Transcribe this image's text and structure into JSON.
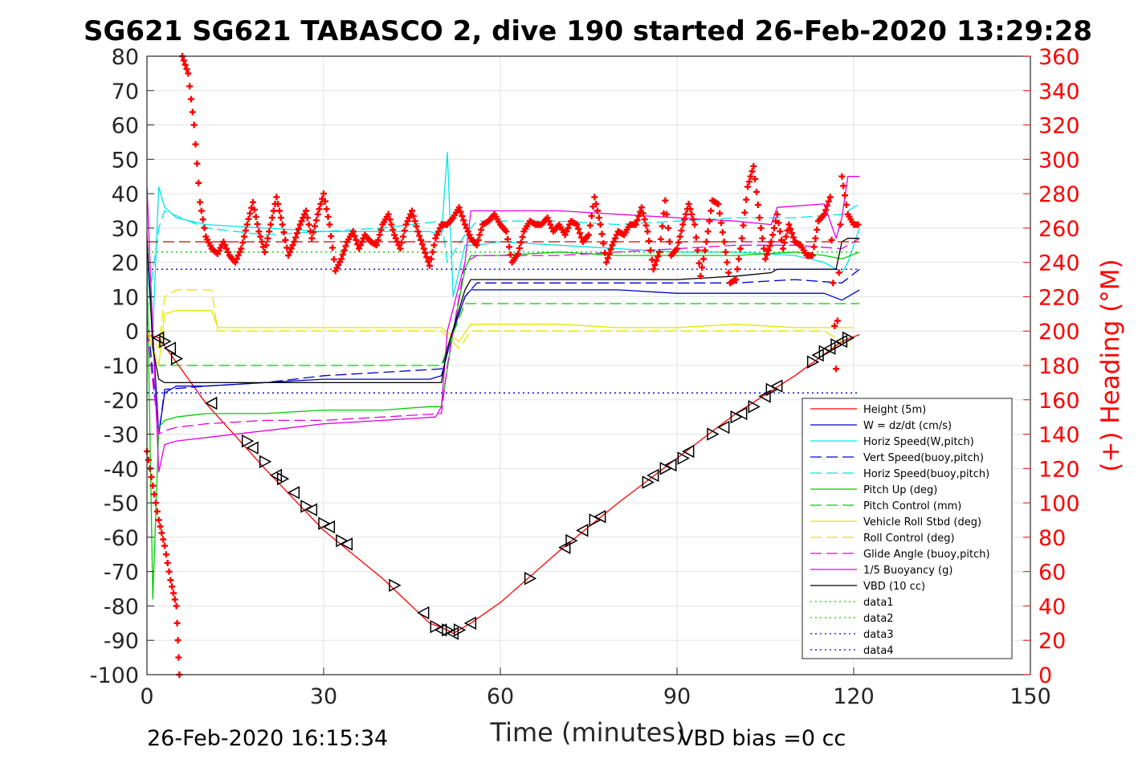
{
  "chart_data": {
    "type": "line",
    "title": "SG621 SG621 TABASCO 2, dive 190 started 26-Feb-2020 13:29:28",
    "xlabel": "Time (minutes)",
    "ylabel_right": "(+) Heading (°M)",
    "footer_left": "26-Feb-2020 16:15:34",
    "footer_right": "VBD bias =0 cc",
    "xlim": [
      0,
      150
    ],
    "ylim_left": [
      -100,
      80
    ],
    "ylim_right": [
      0,
      360
    ],
    "grid": true,
    "legend_position": "lower-right",
    "x_ticks": [
      "0",
      "30",
      "60",
      "90",
      "120",
      "150"
    ],
    "y_ticks_left": [
      "80",
      "70",
      "60",
      "50",
      "40",
      "30",
      "20",
      "10",
      "0",
      "-10",
      "-20",
      "-30",
      "-40",
      "-50",
      "-60",
      "-70",
      "-80",
      "-90",
      "-100"
    ],
    "y_ticks_right": [
      "360",
      "340",
      "320",
      "300",
      "280",
      "260",
      "240",
      "220",
      "200",
      "180",
      "160",
      "140",
      "120",
      "100",
      "80",
      "60",
      "40",
      "20",
      "0"
    ],
    "legend": [
      {
        "label": "Height (5m)",
        "color": "#ff0000",
        "dash": "solid"
      },
      {
        "label": "W = dz/dt (cm/s)",
        "color": "#0000cc",
        "dash": "solid"
      },
      {
        "label": "Horiz Speed(W,pitch)",
        "color": "#00e5e5",
        "dash": "solid"
      },
      {
        "label": "Vert Speed(buoy,pitch)",
        "color": "#0000cc",
        "dash": "dashed"
      },
      {
        "label": "Horiz Speed(buoy,pitch)",
        "color": "#00e5e5",
        "dash": "dashed"
      },
      {
        "label": "Pitch Up (deg)",
        "color": "#00cc00",
        "dash": "solid"
      },
      {
        "label": "Pitch Control (mm)",
        "color": "#00cc00",
        "dash": "dashed"
      },
      {
        "label": "Vehicle Roll Stbd (deg)",
        "color": "#e5e500",
        "dash": "solid"
      },
      {
        "label": "Roll Control (deg)",
        "color": "#e5e500",
        "dash": "dashed"
      },
      {
        "label": "Glide Angle (buoy,pitch)",
        "color": "#e500e5",
        "dash": "dashed"
      },
      {
        "label": "1/5 Buoyancy (g)",
        "color": "#e500e5",
        "dash": "solid"
      },
      {
        "label": "VBD (10 cc)",
        "color": "#000000",
        "dash": "solid"
      },
      {
        "label": "data1",
        "color": "#00cc00",
        "dash": "dotted"
      },
      {
        "label": "data2",
        "color": "#00cc00",
        "dash": "dotted"
      },
      {
        "label": "data3",
        "color": "#0000cc",
        "dash": "dotted"
      },
      {
        "label": "data4",
        "color": "#0000cc",
        "dash": "dotted"
      }
    ],
    "series": [
      {
        "name": "Height (5m)",
        "color": "#ff0000",
        "dash": "solid",
        "axis": "left",
        "x": [
          0,
          2,
          10,
          20,
          30,
          40,
          48,
          51,
          52,
          55,
          60,
          70,
          80,
          90,
          100,
          110,
          118,
          121
        ],
        "y": [
          -1,
          -2,
          -21,
          -40,
          -58,
          -72,
          -85,
          -87,
          -88,
          -85,
          -79,
          -64,
          -50,
          -37,
          -24,
          -13,
          -3,
          -1
        ]
      },
      {
        "name": "W = dz/dt (cm/s)",
        "color": "#0000cc",
        "dash": "solid",
        "axis": "left",
        "x": [
          0,
          1,
          2,
          3,
          5,
          10,
          20,
          30,
          40,
          48,
          50,
          52,
          54,
          55,
          60,
          70,
          80,
          90,
          100,
          110,
          115,
          118,
          119,
          121
        ],
        "y": [
          25,
          0,
          -30,
          -18,
          -16,
          -16,
          -15,
          -14,
          -14,
          -14,
          -13,
          0,
          10,
          12,
          12,
          12,
          12,
          11,
          11,
          11,
          11,
          9,
          10,
          12
        ]
      },
      {
        "name": "Horiz Speed(W,pitch)",
        "color": "#00e5e5",
        "dash": "solid",
        "axis": "left",
        "x": [
          0,
          1,
          2,
          3,
          5,
          10,
          20,
          30,
          40,
          48,
          50,
          51,
          52,
          54,
          56,
          60,
          70,
          80,
          90,
          100,
          110,
          115,
          118,
          119,
          121
        ],
        "y": [
          20,
          0,
          42,
          36,
          33,
          31,
          30,
          29,
          29,
          29,
          28,
          52,
          10,
          25,
          25,
          26,
          25,
          24,
          23,
          23,
          22,
          20,
          17,
          20,
          30
        ]
      },
      {
        "name": "Vert Speed(buoy,pitch)",
        "color": "#0000cc",
        "dash": "dashed",
        "axis": "left",
        "x": [
          0,
          2,
          3,
          10,
          20,
          30,
          40,
          50,
          51,
          54,
          56,
          70,
          80,
          90,
          100,
          110,
          118,
          121
        ],
        "y": [
          5,
          -30,
          -17,
          -16,
          -15,
          -13,
          -12,
          -11,
          -5,
          10,
          14,
          14,
          14,
          14,
          14,
          15,
          14,
          18
        ]
      },
      {
        "name": "Horiz Speed(buoy,pitch)",
        "color": "#00e5e5",
        "dash": "dashed",
        "axis": "left",
        "x": [
          0,
          2,
          3,
          10,
          20,
          30,
          40,
          50,
          51,
          54,
          56,
          70,
          80,
          90,
          100,
          110,
          118,
          121
        ],
        "y": [
          5,
          30,
          35,
          30,
          28,
          29,
          30,
          32,
          20,
          28,
          32,
          32,
          31,
          32,
          33,
          33,
          34,
          37
        ]
      },
      {
        "name": "Pitch Up (deg)",
        "color": "#00cc00",
        "dash": "solid",
        "axis": "left",
        "x": [
          0,
          1,
          2,
          3,
          5,
          10,
          20,
          30,
          40,
          48,
          50,
          52,
          54,
          55,
          60,
          70,
          80,
          90,
          100,
          110,
          115,
          118,
          121
        ],
        "y": [
          20,
          -78,
          -28,
          -26,
          -25,
          -24,
          -24,
          -23,
          -23,
          -22,
          -22,
          0,
          18,
          22,
          22,
          23,
          22,
          22,
          22,
          23,
          22,
          21,
          23
        ]
      },
      {
        "name": "Pitch Control (mm)",
        "color": "#00cc00",
        "dash": "dashed",
        "axis": "left",
        "x": [
          0,
          2,
          3,
          50,
          51,
          54,
          55,
          121
        ],
        "y": [
          0,
          -10,
          -10,
          -10,
          -5,
          8,
          8,
          8
        ]
      },
      {
        "name": "Vehicle Roll Stbd (deg)",
        "color": "#e5e500",
        "dash": "solid",
        "axis": "left",
        "x": [
          0,
          2,
          3,
          5,
          11,
          12,
          20,
          30,
          40,
          50,
          53,
          55,
          60,
          70,
          80,
          90,
          100,
          110,
          115,
          120
        ],
        "y": [
          0,
          -10,
          5,
          6,
          6,
          1,
          1,
          1,
          1,
          1,
          -3,
          2,
          2,
          2,
          1,
          1,
          2,
          1,
          1,
          1
        ]
      },
      {
        "name": "Roll Control (deg)",
        "color": "#e5e500",
        "dash": "dashed",
        "axis": "left",
        "x": [
          0,
          2,
          3,
          5,
          11,
          12,
          20,
          30,
          40,
          50,
          53,
          55,
          60,
          70,
          80,
          90,
          100,
          110,
          115,
          120
        ],
        "y": [
          0,
          -5,
          10,
          12,
          12,
          0,
          0,
          0,
          0,
          0,
          -5,
          0,
          0,
          0,
          0,
          0,
          0,
          0,
          0,
          -5
        ]
      },
      {
        "name": "Glide Angle (buoy,pitch)",
        "color": "#e500e5",
        "dash": "dashed",
        "axis": "left",
        "x": [
          0,
          2,
          3,
          5,
          10,
          20,
          30,
          40,
          50,
          51,
          54,
          56,
          70,
          80,
          90,
          100,
          110,
          118,
          121
        ],
        "y": [
          0,
          -30,
          -29,
          -28,
          -27,
          -26,
          -26,
          -25,
          -24,
          -10,
          20,
          22,
          22,
          23,
          24,
          25,
          25,
          24,
          27
        ]
      },
      {
        "name": "1/5 Buoyancy (g)",
        "color": "#e500e5",
        "dash": "solid",
        "axis": "left",
        "x": [
          0,
          1,
          2,
          3,
          5,
          10,
          20,
          30,
          40,
          49,
          50,
          51,
          54,
          55,
          60,
          70,
          80,
          90,
          100,
          106,
          107,
          115,
          117,
          118,
          119,
          121
        ],
        "y": [
          42,
          0,
          -41,
          -33,
          -32,
          -31,
          -29,
          -27,
          -26,
          -25,
          -22,
          0,
          20,
          35,
          35,
          35,
          34,
          33,
          32,
          31,
          36,
          37,
          27,
          33,
          45,
          45
        ]
      },
      {
        "name": "VBD (10 cc)",
        "color": "#000000",
        "dash": "solid",
        "axis": "left",
        "x": [
          0,
          1,
          2,
          3,
          5,
          10,
          20,
          30,
          40,
          50,
          51,
          54,
          55,
          60,
          70,
          80,
          90,
          100,
          106,
          107,
          115,
          117,
          118,
          119,
          121
        ],
        "y": [
          28,
          -5,
          -14,
          -15,
          -15,
          -15,
          -15,
          -15,
          -15,
          -15,
          -5,
          12,
          15,
          15,
          15,
          15,
          15,
          16,
          17,
          18,
          18,
          18,
          26,
          27,
          27
        ]
      },
      {
        "name": "data1",
        "color": "#00cc00",
        "dash": "dotted",
        "axis": "left",
        "x": [
          0,
          121
        ],
        "y": [
          23,
          23
        ]
      },
      {
        "name": "data2",
        "color": "#00cc00",
        "dash": "dotted",
        "axis": "left",
        "x": [
          0,
          121
        ],
        "y": [
          -18,
          -18
        ]
      },
      {
        "name": "data3",
        "color": "#0000cc",
        "dash": "dotted",
        "axis": "left",
        "x": [
          0,
          121
        ],
        "y": [
          18,
          18
        ]
      },
      {
        "name": "data4",
        "color": "#0000cc",
        "dash": "dotted",
        "axis": "left",
        "x": [
          0,
          121
        ],
        "y": [
          -18,
          -18
        ]
      },
      {
        "color": "#cc0000",
        "dash": "dashed",
        "axis": "left",
        "x": [
          0,
          121
        ],
        "y": [
          26,
          26
        ]
      }
    ],
    "heading_series": {
      "color": "#ff0000",
      "axis": "right",
      "marker": "plus",
      "x": [
        0,
        1,
        2,
        3,
        4,
        5,
        5.5,
        6,
        7,
        8,
        9,
        10,
        11,
        12,
        13,
        14,
        15,
        16,
        17,
        18,
        19,
        20,
        21,
        22,
        23,
        24,
        25,
        26,
        27,
        28,
        29,
        30,
        31,
        32,
        33,
        34,
        35,
        36,
        37,
        38,
        39,
        40,
        41,
        42,
        43,
        44,
        45,
        46,
        47,
        48,
        49,
        50,
        51,
        52,
        53,
        54,
        55,
        56,
        57,
        58,
        59,
        60,
        61,
        62,
        63,
        64,
        65,
        66,
        67,
        68,
        69,
        70,
        71,
        72,
        73,
        74,
        75,
        76,
        77,
        78,
        79,
        80,
        81,
        82,
        83,
        84,
        85,
        86,
        87,
        88,
        89,
        90,
        91,
        92,
        93,
        94,
        95,
        96,
        97,
        98,
        99,
        100,
        101,
        102,
        103,
        104,
        105,
        106,
        107,
        108,
        109,
        110,
        111,
        112,
        113,
        114,
        115,
        116,
        117,
        118,
        119,
        120,
        121
      ],
      "y": [
        130,
        110,
        90,
        75,
        55,
        40,
        0,
        360,
        350,
        320,
        275,
        255,
        248,
        245,
        252,
        244,
        240,
        248,
        262,
        275,
        258,
        246,
        262,
        278,
        262,
        244,
        252,
        262,
        270,
        254,
        268,
        280,
        262,
        235,
        242,
        252,
        258,
        248,
        256,
        252,
        250,
        262,
        268,
        256,
        248,
        262,
        270,
        258,
        248,
        238,
        254,
        262,
        262,
        266,
        272,
        262,
        254,
        250,
        262,
        264,
        268,
        262,
        258,
        240,
        245,
        258,
        264,
        262,
        262,
        266,
        258,
        262,
        256,
        264,
        262,
        252,
        256,
        278,
        262,
        240,
        250,
        258,
        256,
        262,
        262,
        272,
        258,
        236,
        246,
        276,
        244,
        248,
        262,
        274,
        262,
        232,
        252,
        276,
        274,
        252,
        228,
        230,
        254,
        284,
        296,
        266,
        242,
        252,
        268,
        248,
        262,
        252,
        250,
        244,
        244,
        264,
        268,
        278,
        178,
        290,
        268,
        262,
        262
      ]
    },
    "markers_series": {
      "color": "#000000",
      "axis": "left",
      "marker": "triangle",
      "x": [
        2,
        3,
        4,
        5,
        11,
        17,
        18,
        20,
        22,
        23,
        25,
        27,
        28,
        30,
        31,
        33,
        34,
        42,
        47,
        49,
        50,
        51,
        52,
        53,
        55,
        65,
        71,
        72,
        74,
        76,
        77,
        85,
        86,
        88,
        89,
        91,
        92,
        96,
        98,
        100,
        101,
        103,
        105,
        106,
        107,
        113,
        114,
        115,
        116,
        117,
        118,
        119
      ],
      "y": [
        -2,
        -3,
        -5,
        -8,
        -21,
        -32,
        -34,
        -38,
        -42,
        -43,
        -47,
        -51,
        -52,
        -56,
        -57,
        -61,
        -62,
        -74,
        -82,
        -86,
        -87,
        -87,
        -88,
        -87,
        -85,
        -72,
        -63,
        -61,
        -58,
        -55,
        -54,
        -44,
        -42,
        -40,
        -39,
        -37,
        -35,
        -30,
        -28,
        -25,
        -24,
        -22,
        -19,
        -17,
        -16,
        -9,
        -7,
        -6,
        -5,
        -4,
        -3,
        -2
      ]
    }
  }
}
